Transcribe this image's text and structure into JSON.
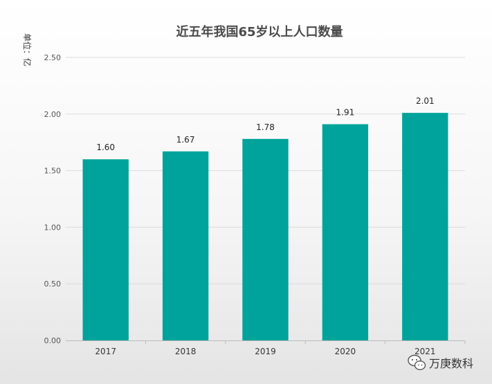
{
  "chart_data": {
    "type": "bar",
    "title": "近五年我国65岁以上人口数量",
    "unit_label": "单位：亿",
    "categories": [
      "2017",
      "2018",
      "2019",
      "2020",
      "2021"
    ],
    "values": [
      1.6,
      1.67,
      1.78,
      1.91,
      2.01
    ],
    "data_labels": [
      "1.60",
      "1.67",
      "1.78",
      "1.91",
      "2.01"
    ],
    "ylim": [
      0,
      2.5
    ],
    "yticks": [
      "0.00",
      "0.50",
      "1.00",
      "1.50",
      "2.00",
      "2.50"
    ],
    "grid": true,
    "legend": "none",
    "bar_color": "#00A39B"
  },
  "watermark": {
    "text": "万庚数科",
    "icon": "wechat-icon"
  }
}
